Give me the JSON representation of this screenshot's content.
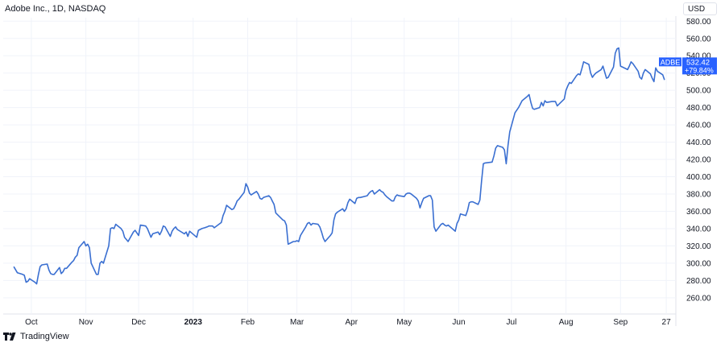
{
  "header": {
    "title": "Adobe Inc., 1D, NASDAQ",
    "currency": "USD"
  },
  "branding": {
    "name": "TradingView",
    "icon": "tradingview-logo-icon"
  },
  "price_label": {
    "ticker": "ADBE",
    "price": "532.42",
    "change": "+79.84%",
    "color": "#2962ff"
  },
  "colors": {
    "line": "#3a6fd1",
    "grid": "#f0f3fa",
    "axis_text": "#131722"
  },
  "chart_data": {
    "type": "line",
    "title": "Adobe Inc., 1D, NASDAQ",
    "xlabel": "",
    "ylabel": "",
    "ylim": [
      244,
      584
    ],
    "y_ticks": [
      "260.00",
      "280.00",
      "300.00",
      "320.00",
      "340.00",
      "360.00",
      "380.00",
      "400.00",
      "420.00",
      "440.00",
      "460.00",
      "480.00",
      "500.00",
      "520.00",
      "540.00",
      "560.00",
      "580.00"
    ],
    "x_ticks": [
      {
        "label": "Oct",
        "date": "2022-10-01",
        "bold": false
      },
      {
        "label": "Nov",
        "date": "2022-11-01",
        "bold": false
      },
      {
        "label": "Dec",
        "date": "2022-12-01",
        "bold": false
      },
      {
        "label": "2023",
        "date": "2023-01-01",
        "bold": true
      },
      {
        "label": "Feb",
        "date": "2023-02-01",
        "bold": false
      },
      {
        "label": "Mar",
        "date": "2023-03-01",
        "bold": false
      },
      {
        "label": "Apr",
        "date": "2023-04-01",
        "bold": false
      },
      {
        "label": "May",
        "date": "2023-05-01",
        "bold": false
      },
      {
        "label": "Jun",
        "date": "2023-06-01",
        "bold": false
      },
      {
        "label": "Jul",
        "date": "2023-07-01",
        "bold": false
      },
      {
        "label": "Aug",
        "date": "2023-08-01",
        "bold": false
      },
      {
        "label": "Sep",
        "date": "2023-09-01",
        "bold": false
      },
      {
        "label": "27",
        "date": "2023-09-27",
        "bold": false
      }
    ],
    "grid": true,
    "series": [
      {
        "name": "ADBE",
        "points": [
          [
            "2022-09-21",
            296
          ],
          [
            "2022-09-23",
            289
          ],
          [
            "2022-09-26",
            287
          ],
          [
            "2022-09-27",
            286
          ],
          [
            "2022-09-28",
            278
          ],
          [
            "2022-09-29",
            279
          ],
          [
            "2022-09-30",
            282
          ],
          [
            "2022-10-03",
            278
          ],
          [
            "2022-10-04",
            276
          ],
          [
            "2022-10-05",
            287
          ],
          [
            "2022-10-06",
            296
          ],
          [
            "2022-10-07",
            298
          ],
          [
            "2022-10-10",
            299
          ],
          [
            "2022-10-11",
            292
          ],
          [
            "2022-10-12",
            288
          ],
          [
            "2022-10-13",
            287
          ],
          [
            "2022-10-14",
            287
          ],
          [
            "2022-10-17",
            295
          ],
          [
            "2022-10-18",
            288
          ],
          [
            "2022-10-19",
            290
          ],
          [
            "2022-10-20",
            294
          ],
          [
            "2022-10-21",
            294
          ],
          [
            "2022-10-24",
            301
          ],
          [
            "2022-10-25",
            303
          ],
          [
            "2022-10-26",
            307
          ],
          [
            "2022-10-27",
            309
          ],
          [
            "2022-10-28",
            318
          ],
          [
            "2022-10-31",
            325
          ],
          [
            "2022-11-01",
            320
          ],
          [
            "2022-11-02",
            322
          ],
          [
            "2022-11-03",
            318
          ],
          [
            "2022-11-04",
            300
          ],
          [
            "2022-11-07",
            287
          ],
          [
            "2022-11-08",
            287
          ],
          [
            "2022-11-09",
            300
          ],
          [
            "2022-11-10",
            302
          ],
          [
            "2022-11-11",
            300
          ],
          [
            "2022-11-14",
            320
          ],
          [
            "2022-11-15",
            340
          ],
          [
            "2022-11-16",
            341
          ],
          [
            "2022-11-17",
            340
          ],
          [
            "2022-11-18",
            345
          ],
          [
            "2022-11-21",
            340
          ],
          [
            "2022-11-22",
            337
          ],
          [
            "2022-11-23",
            330
          ],
          [
            "2022-11-25",
            325
          ],
          [
            "2022-11-28",
            336
          ],
          [
            "2022-11-29",
            338
          ],
          [
            "2022-11-30",
            335
          ],
          [
            "2022-12-01",
            332
          ],
          [
            "2022-12-02",
            344
          ],
          [
            "2022-12-05",
            343
          ],
          [
            "2022-12-06",
            340
          ],
          [
            "2022-12-07",
            335
          ],
          [
            "2022-12-08",
            330
          ],
          [
            "2022-12-09",
            334
          ],
          [
            "2022-12-12",
            336
          ],
          [
            "2022-12-13",
            333
          ],
          [
            "2022-12-14",
            337
          ],
          [
            "2022-12-15",
            343
          ],
          [
            "2022-12-16",
            342
          ],
          [
            "2022-12-19",
            331
          ],
          [
            "2022-12-20",
            337
          ],
          [
            "2022-12-21",
            340
          ],
          [
            "2022-12-22",
            342
          ],
          [
            "2022-12-23",
            339
          ],
          [
            "2022-12-27",
            334
          ],
          [
            "2022-12-28",
            336
          ],
          [
            "2022-12-29",
            331
          ],
          [
            "2022-12-30",
            337
          ],
          [
            "2023-01-03",
            330
          ],
          [
            "2023-01-04",
            338
          ],
          [
            "2023-01-05",
            339
          ],
          [
            "2023-01-06",
            340
          ],
          [
            "2023-01-09",
            342
          ],
          [
            "2023-01-10",
            343
          ],
          [
            "2023-01-11",
            343
          ],
          [
            "2023-01-12",
            343
          ],
          [
            "2023-01-13",
            341
          ],
          [
            "2023-01-17",
            347
          ],
          [
            "2023-01-18",
            355
          ],
          [
            "2023-01-19",
            360
          ],
          [
            "2023-01-20",
            367
          ],
          [
            "2023-01-23",
            362
          ],
          [
            "2023-01-24",
            363
          ],
          [
            "2023-01-25",
            367
          ],
          [
            "2023-01-26",
            372
          ],
          [
            "2023-01-27",
            374
          ],
          [
            "2023-01-30",
            382
          ],
          [
            "2023-01-31",
            392
          ],
          [
            "2023-02-01",
            388
          ],
          [
            "2023-02-02",
            381
          ],
          [
            "2023-02-03",
            379
          ],
          [
            "2023-02-06",
            383
          ],
          [
            "2023-02-07",
            380
          ],
          [
            "2023-02-08",
            375
          ],
          [
            "2023-02-09",
            374
          ],
          [
            "2023-02-10",
            376
          ],
          [
            "2023-02-13",
            378
          ],
          [
            "2023-02-14",
            376
          ],
          [
            "2023-02-15",
            372
          ],
          [
            "2023-02-16",
            368
          ],
          [
            "2023-02-17",
            358
          ],
          [
            "2023-02-21",
            350
          ],
          [
            "2023-02-22",
            349
          ],
          [
            "2023-02-23",
            344
          ],
          [
            "2023-02-24",
            322
          ],
          [
            "2023-02-27",
            325
          ],
          [
            "2023-02-28",
            325
          ],
          [
            "2023-03-01",
            326
          ],
          [
            "2023-03-02",
            325
          ],
          [
            "2023-03-03",
            332
          ],
          [
            "2023-03-06",
            342
          ],
          [
            "2023-03-07",
            346
          ],
          [
            "2023-03-08",
            347
          ],
          [
            "2023-03-09",
            344
          ],
          [
            "2023-03-10",
            346
          ],
          [
            "2023-03-13",
            345
          ],
          [
            "2023-03-14",
            342
          ],
          [
            "2023-03-15",
            336
          ],
          [
            "2023-03-16",
            329
          ],
          [
            "2023-03-17",
            325
          ],
          [
            "2023-03-20",
            332
          ],
          [
            "2023-03-21",
            335
          ],
          [
            "2023-03-22",
            350
          ],
          [
            "2023-03-23",
            357
          ],
          [
            "2023-03-24",
            359
          ],
          [
            "2023-03-27",
            363
          ],
          [
            "2023-03-28",
            360
          ],
          [
            "2023-03-29",
            363
          ],
          [
            "2023-03-30",
            370
          ],
          [
            "2023-03-31",
            374
          ],
          [
            "2023-04-03",
            369
          ],
          [
            "2023-04-04",
            375
          ],
          [
            "2023-04-05",
            376
          ],
          [
            "2023-04-06",
            376
          ],
          [
            "2023-04-10",
            378
          ],
          [
            "2023-04-11",
            381
          ],
          [
            "2023-04-12",
            383
          ],
          [
            "2023-04-13",
            384
          ],
          [
            "2023-04-14",
            380
          ],
          [
            "2023-04-17",
            385
          ],
          [
            "2023-04-18",
            383
          ],
          [
            "2023-04-19",
            382
          ],
          [
            "2023-04-20",
            379
          ],
          [
            "2023-04-21",
            377
          ],
          [
            "2023-04-24",
            372
          ],
          [
            "2023-04-25",
            372
          ],
          [
            "2023-04-26",
            377
          ],
          [
            "2023-04-27",
            379
          ],
          [
            "2023-04-28",
            378
          ],
          [
            "2023-05-01",
            377
          ],
          [
            "2023-05-02",
            380
          ],
          [
            "2023-05-03",
            381
          ],
          [
            "2023-05-04",
            381
          ],
          [
            "2023-05-05",
            380
          ],
          [
            "2023-05-08",
            375
          ],
          [
            "2023-05-09",
            372
          ],
          [
            "2023-05-10",
            364
          ],
          [
            "2023-05-11",
            370
          ],
          [
            "2023-05-12",
            375
          ],
          [
            "2023-05-15",
            378
          ],
          [
            "2023-05-16",
            378
          ],
          [
            "2023-05-17",
            373
          ],
          [
            "2023-05-18",
            342
          ],
          [
            "2023-05-19",
            337
          ],
          [
            "2023-05-22",
            345
          ],
          [
            "2023-05-23",
            346
          ],
          [
            "2023-05-24",
            344
          ],
          [
            "2023-05-25",
            343
          ],
          [
            "2023-05-26",
            344
          ],
          [
            "2023-05-30",
            337
          ],
          [
            "2023-05-31",
            346
          ],
          [
            "2023-06-01",
            350
          ],
          [
            "2023-06-02",
            357
          ],
          [
            "2023-06-05",
            355
          ],
          [
            "2023-06-06",
            361
          ],
          [
            "2023-06-07",
            370
          ],
          [
            "2023-06-08",
            371
          ],
          [
            "2023-06-09",
            371
          ],
          [
            "2023-06-12",
            368
          ],
          [
            "2023-06-13",
            373
          ],
          [
            "2023-06-14",
            395
          ],
          [
            "2023-06-15",
            415
          ],
          [
            "2023-06-16",
            416
          ],
          [
            "2023-06-20",
            417
          ],
          [
            "2023-06-21",
            424
          ],
          [
            "2023-06-22",
            433
          ],
          [
            "2023-06-23",
            436
          ],
          [
            "2023-06-26",
            434
          ],
          [
            "2023-06-27",
            431
          ],
          [
            "2023-06-28",
            415
          ],
          [
            "2023-06-29",
            436
          ],
          [
            "2023-06-30",
            452
          ],
          [
            "2023-07-03",
            474
          ],
          [
            "2023-07-05",
            480
          ],
          [
            "2023-07-06",
            484
          ],
          [
            "2023-07-07",
            488
          ],
          [
            "2023-07-10",
            493
          ],
          [
            "2023-07-11",
            495
          ],
          [
            "2023-07-12",
            486
          ],
          [
            "2023-07-13",
            479
          ],
          [
            "2023-07-14",
            478
          ],
          [
            "2023-07-17",
            480
          ],
          [
            "2023-07-18",
            486
          ],
          [
            "2023-07-19",
            482
          ],
          [
            "2023-07-20",
            488
          ],
          [
            "2023-07-21",
            486
          ],
          [
            "2023-07-24",
            487
          ],
          [
            "2023-07-25",
            487
          ],
          [
            "2023-07-26",
            487
          ],
          [
            "2023-07-27",
            482
          ],
          [
            "2023-07-28",
            484
          ],
          [
            "2023-07-31",
            490
          ],
          [
            "2023-08-01",
            500
          ],
          [
            "2023-08-02",
            505
          ],
          [
            "2023-08-03",
            509
          ],
          [
            "2023-08-04",
            508
          ],
          [
            "2023-08-07",
            517
          ],
          [
            "2023-08-08",
            519
          ],
          [
            "2023-08-09",
            518
          ],
          [
            "2023-08-10",
            525
          ],
          [
            "2023-08-11",
            533
          ],
          [
            "2023-08-14",
            530
          ],
          [
            "2023-08-15",
            520
          ],
          [
            "2023-08-16",
            515
          ],
          [
            "2023-08-17",
            518
          ],
          [
            "2023-08-18",
            520
          ],
          [
            "2023-08-21",
            524
          ],
          [
            "2023-08-22",
            528
          ],
          [
            "2023-08-23",
            521
          ],
          [
            "2023-08-24",
            514
          ],
          [
            "2023-08-25",
            515
          ],
          [
            "2023-08-28",
            527
          ],
          [
            "2023-08-29",
            543
          ],
          [
            "2023-08-30",
            548
          ],
          [
            "2023-08-31",
            549
          ],
          [
            "2023-09-01",
            528
          ],
          [
            "2023-09-05",
            524
          ],
          [
            "2023-09-06",
            528
          ],
          [
            "2023-09-07",
            533
          ],
          [
            "2023-09-08",
            531
          ],
          [
            "2023-09-11",
            522
          ],
          [
            "2023-09-12",
            515
          ],
          [
            "2023-09-13",
            513
          ],
          [
            "2023-09-14",
            520
          ],
          [
            "2023-09-15",
            524
          ],
          [
            "2023-09-18",
            519
          ],
          [
            "2023-09-19",
            514
          ],
          [
            "2023-09-20",
            510
          ],
          [
            "2023-09-21",
            526
          ],
          [
            "2023-09-22",
            522
          ],
          [
            "2023-09-25",
            518
          ],
          [
            "2023-09-26",
            512
          ]
        ]
      }
    ]
  }
}
